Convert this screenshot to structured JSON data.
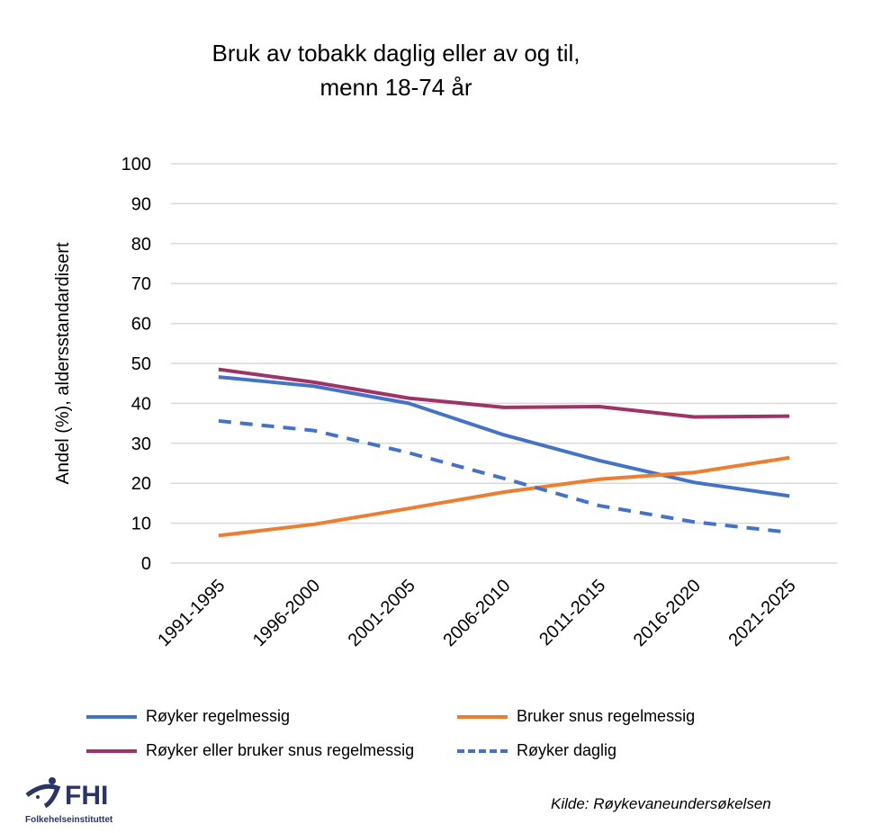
{
  "chart_data": {
    "type": "line",
    "title_line1": "Bruk av tobakk daglig eller av og til,",
    "title_line2": "menn 18-74 år",
    "ylabel": "Andel (%), aldersstandardisert",
    "xlabel": "",
    "ylim": [
      0,
      100
    ],
    "yticks": [
      0,
      10,
      20,
      30,
      40,
      50,
      60,
      70,
      80,
      90,
      100
    ],
    "grid": true,
    "legend_placement": "bottom",
    "categories": [
      "1991-1995",
      "1996-2000",
      "2001-2005",
      "2006-2010",
      "2011-2015",
      "2016-2020",
      "2021-2025"
    ],
    "series": [
      {
        "name": "Røyker regelmessig",
        "color": "#4472C4",
        "dash": false,
        "values": [
          46.6,
          44.3,
          40.0,
          32.1,
          25.7,
          20.2,
          16.8
        ]
      },
      {
        "name": "Bruker snus regelmessig",
        "color": "#ED7D31",
        "dash": false,
        "values": [
          6.9,
          9.7,
          13.7,
          17.8,
          21.0,
          22.7,
          26.4
        ]
      },
      {
        "name": "Røyker eller bruker snus regelmessig",
        "color": "#9E3368",
        "dash": false,
        "values": [
          48.5,
          45.3,
          41.3,
          39.0,
          39.2,
          36.6,
          36.8
        ]
      },
      {
        "name": "Røyker daglig",
        "color": "#4472C4",
        "dash": true,
        "values": [
          35.6,
          33.2,
          27.6,
          21.2,
          14.4,
          10.3,
          7.7
        ]
      }
    ]
  },
  "source": "Kilde: Røykevaneundersøkelsen",
  "logo": {
    "text": "FHI",
    "subtext": "Folkehelseinstituttet",
    "color": "#2B3467"
  }
}
